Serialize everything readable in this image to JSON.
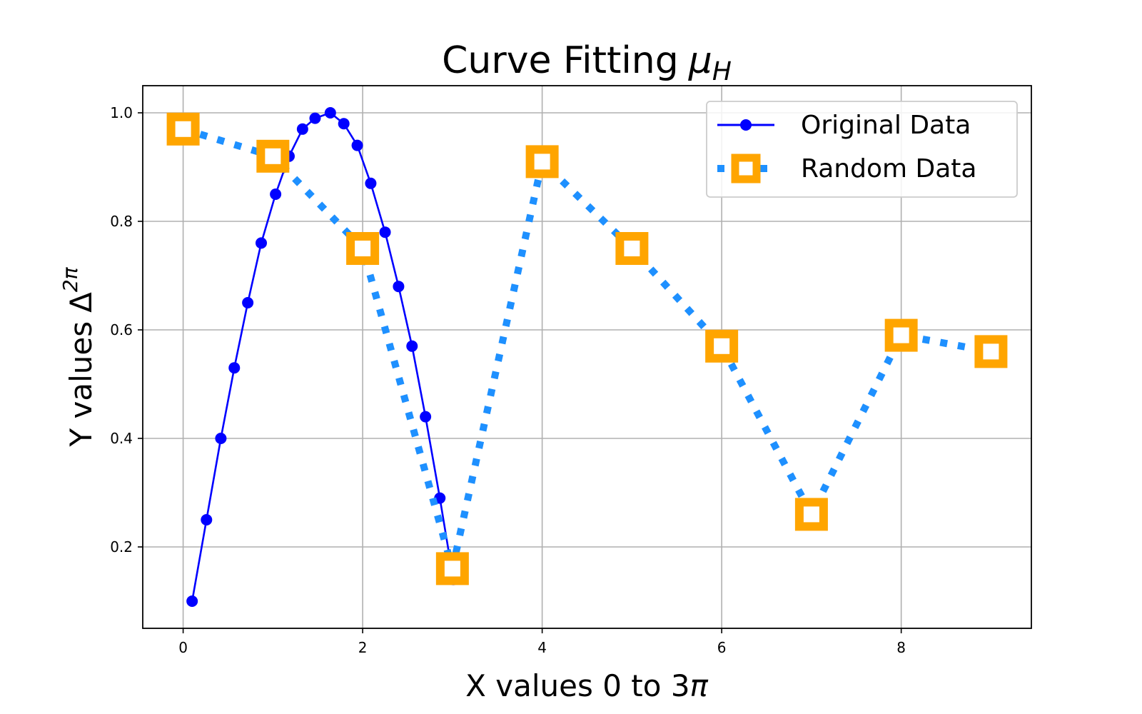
{
  "chart_data": {
    "type": "line",
    "title": "Curve Fitting",
    "title_math": "μ",
    "title_math_sub": "H",
    "xlabel": "X values 0 to 3",
    "xlabel_math": "π",
    "ylabel": "Y values",
    "ylabel_math": "Δ",
    "ylabel_math_sup": "2π",
    "xlim": [
      -0.45,
      9.45
    ],
    "ylim": [
      0.05,
      1.05
    ],
    "xticks": [
      0,
      2,
      4,
      6,
      8
    ],
    "yticks": [
      0.2,
      0.4,
      0.6,
      0.8,
      1.0
    ],
    "xtick_labels": [
      "0",
      "2",
      "4",
      "6",
      "8"
    ],
    "ytick_labels": [
      "0.2",
      "0.4",
      "0.6",
      "0.8",
      "1.0"
    ],
    "grid": true,
    "legend_position": "top-right",
    "series": [
      {
        "name": "Original Data",
        "color": "#0000ff",
        "style": "solid",
        "marker": "circle",
        "x": [
          0.1,
          0.26,
          0.42,
          0.57,
          0.72,
          0.87,
          1.03,
          1.18,
          1.33,
          1.47,
          1.64,
          1.79,
          1.94,
          2.09,
          2.25,
          2.4,
          2.55,
          2.7,
          2.86,
          3.01
        ],
        "y": [
          0.1,
          0.25,
          0.4,
          0.53,
          0.65,
          0.76,
          0.85,
          0.92,
          0.97,
          0.99,
          1.0,
          0.98,
          0.94,
          0.87,
          0.78,
          0.68,
          0.57,
          0.44,
          0.29,
          0.14
        ]
      },
      {
        "name": "Random Data",
        "color": "#1e90ff",
        "marker_color": "#ffa500",
        "style": "dotted",
        "marker": "square",
        "x": [
          0,
          1,
          2,
          3,
          4,
          5,
          6,
          7,
          8,
          9
        ],
        "y": [
          0.97,
          0.92,
          0.75,
          0.16,
          0.91,
          0.75,
          0.57,
          0.26,
          0.59,
          0.56
        ]
      }
    ]
  }
}
